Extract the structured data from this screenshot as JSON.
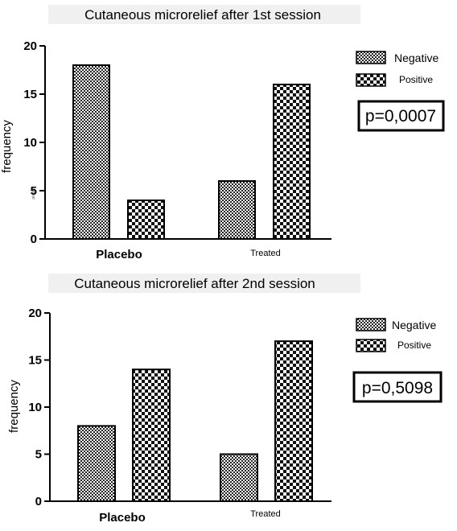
{
  "chart_data": [
    {
      "type": "bar",
      "title": "Cutaneous microrelief after 1st session",
      "ylabel": "frequency",
      "ylim": [
        0,
        20
      ],
      "yticks": [
        "0",
        "5",
        "10",
        "15",
        "20"
      ],
      "categories": [
        "Placebo",
        "Treated"
      ],
      "series": [
        {
          "name": "Negative",
          "values": [
            18,
            6
          ]
        },
        {
          "name": "Positive",
          "values": [
            4,
            16
          ]
        }
      ],
      "annotation": "p=0,0007",
      "legend_position": "right",
      "small_axis_text": "person"
    },
    {
      "type": "bar",
      "title": "Cutaneous microrelief after 2nd session",
      "ylabel": "frequency",
      "ylim": [
        0,
        20
      ],
      "yticks": [
        "0",
        "5",
        "10",
        "15",
        "20"
      ],
      "categories": [
        "Placebo",
        "Treated"
      ],
      "series": [
        {
          "name": "Negative",
          "values": [
            8,
            5
          ]
        },
        {
          "name": "Positive",
          "values": [
            14,
            17
          ]
        }
      ],
      "annotation": "p=0,5098",
      "legend_position": "right"
    }
  ]
}
